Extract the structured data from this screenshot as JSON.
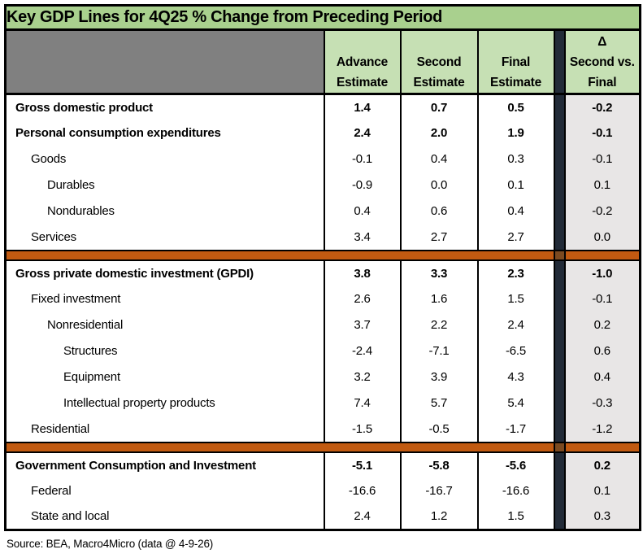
{
  "title": "Key GDP Lines for 4Q25 % Change from Preceding Period",
  "header": {
    "value_columns": [
      [
        "Advance",
        "Estimate"
      ],
      [
        "Second",
        "Estimate"
      ],
      [
        "Final",
        "Estimate"
      ]
    ],
    "delta_column": [
      "Δ",
      "Second vs.",
      "Final"
    ]
  },
  "footer": {
    "source": "Source: BEA, Macro4Micro (data @ 4-9-26)"
  },
  "colors": {
    "title_bg": "#a9d08e",
    "header_bg": "#c6e0b4",
    "corner_bg": "#808080",
    "delta_bg": "#e8e6e6",
    "separator_bg": "#222b38",
    "section_divider": "#c15a11",
    "divider_over_separator": "#7c4a20",
    "border": "#000000"
  },
  "chart_data": {
    "type": "table",
    "title": "Key GDP Lines for 4Q25 % Change from Preceding Period",
    "columns": [
      "Advance Estimate",
      "Second Estimate",
      "Final Estimate",
      "Δ Second vs. Final"
    ],
    "rows": [
      {
        "label": "Gross domestic product",
        "indent": 0,
        "bold": true,
        "section": 0,
        "values": [
          1.4,
          0.7,
          0.5,
          -0.2
        ]
      },
      {
        "label": "Personal consumption expenditures",
        "indent": 0,
        "bold": true,
        "section": 0,
        "values": [
          2.4,
          2.0,
          1.9,
          -0.1
        ]
      },
      {
        "label": "Goods",
        "indent": 1,
        "bold": false,
        "section": 0,
        "values": [
          -0.1,
          0.4,
          0.3,
          -0.1
        ]
      },
      {
        "label": "Durables",
        "indent": 2,
        "bold": false,
        "section": 0,
        "values": [
          -0.9,
          0.0,
          0.1,
          0.1
        ]
      },
      {
        "label": "Nondurables",
        "indent": 2,
        "bold": false,
        "section": 0,
        "values": [
          0.4,
          0.6,
          0.4,
          -0.2
        ]
      },
      {
        "label": "Services",
        "indent": 1,
        "bold": false,
        "section": 0,
        "values": [
          3.4,
          2.7,
          2.7,
          0.0
        ]
      },
      {
        "label": "Gross private domestic investment (GPDI)",
        "indent": 0,
        "bold": true,
        "section": 1,
        "values": [
          3.8,
          3.3,
          2.3,
          -1.0
        ]
      },
      {
        "label": "Fixed investment",
        "indent": 1,
        "bold": false,
        "section": 1,
        "values": [
          2.6,
          1.6,
          1.5,
          -0.1
        ]
      },
      {
        "label": "Nonresidential",
        "indent": 2,
        "bold": false,
        "section": 1,
        "values": [
          3.7,
          2.2,
          2.4,
          0.2
        ]
      },
      {
        "label": "Structures",
        "indent": 3,
        "bold": false,
        "section": 1,
        "values": [
          -2.4,
          -7.1,
          -6.5,
          0.6
        ]
      },
      {
        "label": "Equipment",
        "indent": 3,
        "bold": false,
        "section": 1,
        "values": [
          3.2,
          3.9,
          4.3,
          0.4
        ]
      },
      {
        "label": "Intellectual property products",
        "indent": 3,
        "bold": false,
        "section": 1,
        "values": [
          7.4,
          5.7,
          5.4,
          -0.3
        ]
      },
      {
        "label": "Residential",
        "indent": 1,
        "bold": false,
        "section": 1,
        "values": [
          -1.5,
          -0.5,
          -1.7,
          -1.2
        ]
      },
      {
        "label": "Government Consumption and Investment",
        "indent": 0,
        "bold": true,
        "section": 2,
        "values": [
          -5.1,
          -5.8,
          -5.6,
          0.2
        ]
      },
      {
        "label": "Federal",
        "indent": 1,
        "bold": false,
        "section": 2,
        "values": [
          -16.6,
          -16.7,
          -16.6,
          0.1
        ]
      },
      {
        "label": "State and local",
        "indent": 1,
        "bold": false,
        "section": 2,
        "values": [
          2.4,
          1.2,
          1.5,
          0.3
        ]
      }
    ],
    "source": "Source: BEA, Macro4Micro (data @ 4-9-26)"
  }
}
